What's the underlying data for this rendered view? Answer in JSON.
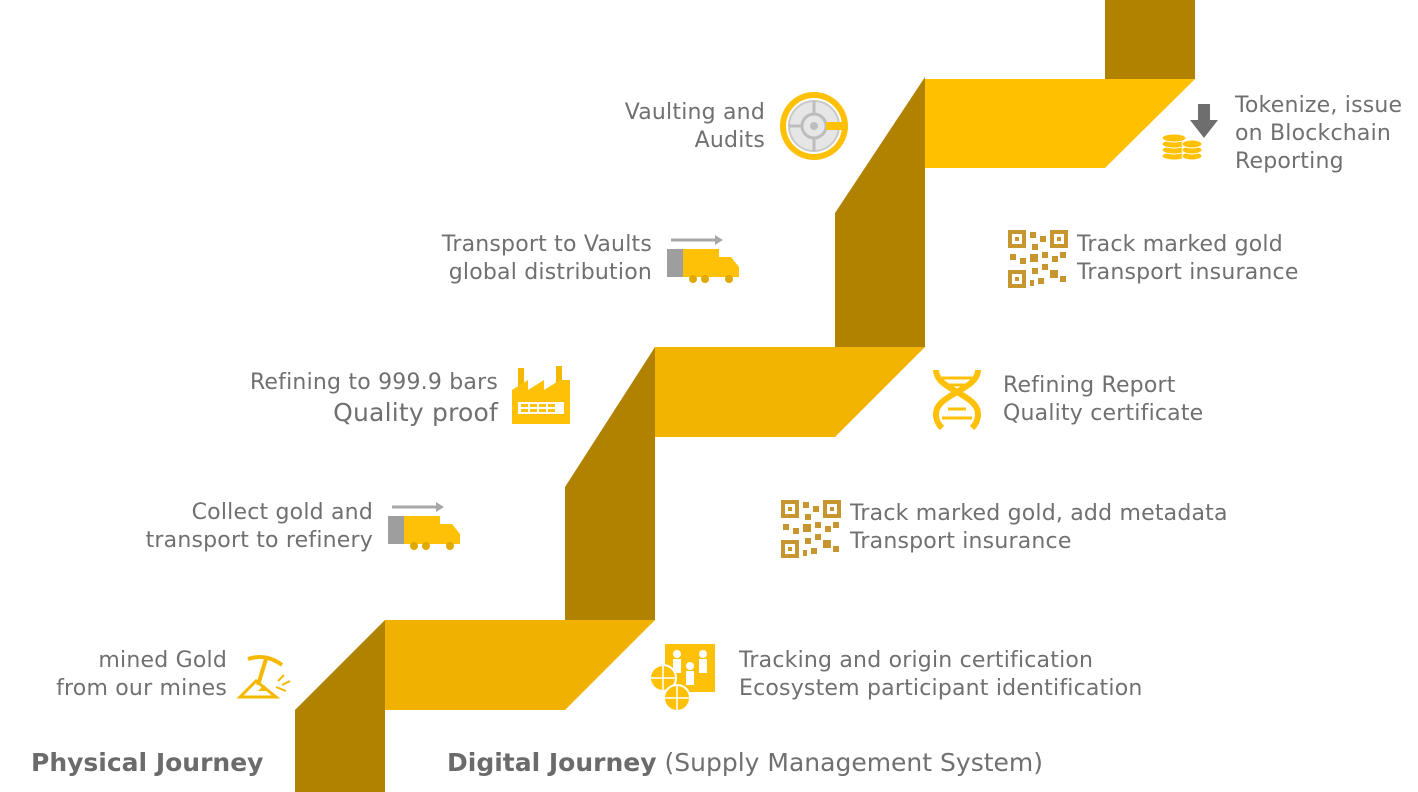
{
  "physical_steps": [
    {
      "line1": "mined Gold",
      "line2": "from our mines",
      "icon": "pickaxe-icon"
    },
    {
      "line1": "Collect gold and",
      "line2": "transport to refinery",
      "icon": "truck-icon"
    },
    {
      "line1": "Refining to 999.9 bars",
      "line2": "Quality proof",
      "icon": "factory-icon"
    },
    {
      "line1": "Transport to Vaults",
      "line2": "global distribution",
      "icon": "truck-icon"
    },
    {
      "line1": "Vaulting and",
      "line2": "Audits",
      "icon": "vault-icon"
    }
  ],
  "digital_steps": [
    {
      "line1": "Tracking and origin certification",
      "line2": "Ecosystem participant identification",
      "icon": "people-globe-icon"
    },
    {
      "line1": "Track marked gold, add metadata",
      "line2": "Transport insurance",
      "icon": "qr-code-icon"
    },
    {
      "line1": "Refining Report",
      "line2": "Quality certificate",
      "icon": "dna-icon"
    },
    {
      "line1": "Track marked gold",
      "line2": "Transport insurance",
      "icon": "qr-code-icon"
    },
    {
      "line1": "Tokenize, issue",
      "line2": "on Blockchain",
      "line3": "Reporting",
      "icon": "coins-download-icon"
    }
  ],
  "footer": {
    "physical_label": "Physical Journey",
    "digital_label": "Digital Journey",
    "digital_sub": "(Supply Management System)"
  },
  "colors": {
    "ribbon_light": "#FFC107",
    "ribbon_mid": "#E8AD06",
    "ribbon_dark": "#B08200",
    "text": "#707070"
  }
}
